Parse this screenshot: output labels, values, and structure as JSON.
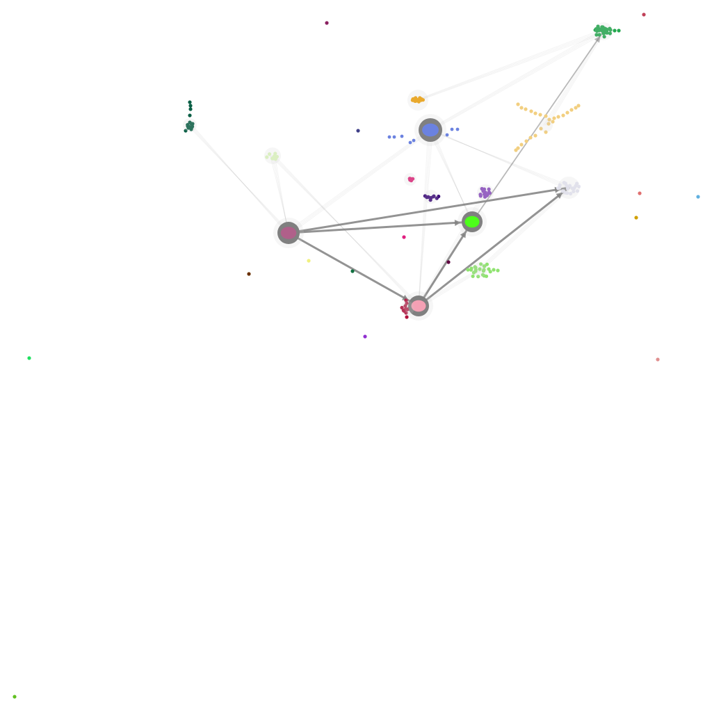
{
  "diagram": {
    "type": "clustered-network",
    "background": "#ffffff",
    "edge_color": "#808080",
    "hub_color": "#808080",
    "hubs": [
      {
        "id": "hub-mauve",
        "color": "#b0608a"
      },
      {
        "id": "hub-blue",
        "color": "#6b82e0"
      },
      {
        "id": "hub-green",
        "color": "#4dff1a"
      },
      {
        "id": "hub-pink",
        "color": "#f4a0b4"
      },
      {
        "id": "hub-lavender",
        "color": "#e6e6f2"
      },
      {
        "id": "hub-darkgreen",
        "color": "#24a84f"
      },
      {
        "id": "hub-orange",
        "color": "#f0a20a"
      },
      {
        "id": "hub-lightgreen",
        "color": "#dff7c0"
      },
      {
        "id": "hub-teal",
        "color": "#0a5f45"
      },
      {
        "id": "hub-mint",
        "color": "#8fe36f"
      },
      {
        "id": "hub-purple",
        "color": "#8a4cc0"
      },
      {
        "id": "hub-indigo",
        "color": "#3d0d7a"
      },
      {
        "id": "hub-magenta",
        "color": "#e0287a"
      },
      {
        "id": "hub-crimson",
        "color": "#b0103c"
      },
      {
        "id": "hub-sand",
        "color": "#f2cf80"
      }
    ],
    "edges": [
      {
        "from": "hub-mauve",
        "to": "hub-pink",
        "weight": "strong"
      },
      {
        "from": "hub-mauve",
        "to": "hub-green",
        "weight": "strong"
      },
      {
        "from": "hub-mauve",
        "to": "hub-lavender",
        "weight": "strong"
      },
      {
        "from": "hub-pink",
        "to": "hub-green",
        "weight": "strong"
      },
      {
        "from": "hub-pink",
        "to": "hub-lavender",
        "weight": "strong"
      },
      {
        "from": "hub-green",
        "to": "hub-darkgreen",
        "weight": "medium"
      },
      {
        "from": "hub-blue",
        "to": "hub-darkgreen",
        "weight": "light"
      },
      {
        "from": "hub-blue",
        "to": "hub-pink",
        "weight": "light"
      },
      {
        "from": "hub-blue",
        "to": "hub-green",
        "weight": "light"
      },
      {
        "from": "hub-blue",
        "to": "hub-lavender",
        "weight": "light"
      },
      {
        "from": "hub-blue",
        "to": "hub-mauve",
        "weight": "light"
      },
      {
        "from": "hub-orange",
        "to": "hub-darkgreen",
        "weight": "light"
      },
      {
        "from": "hub-teal",
        "to": "hub-mauve",
        "weight": "light"
      },
      {
        "from": "hub-lightgreen",
        "to": "hub-mauve",
        "weight": "light"
      },
      {
        "from": "hub-lightgreen",
        "to": "hub-pink",
        "weight": "light"
      },
      {
        "from": "hub-purple",
        "to": "hub-pink",
        "weight": "light"
      },
      {
        "from": "hub-mint",
        "to": "hub-pink",
        "weight": "light"
      },
      {
        "from": "hub-sand",
        "to": "hub-darkgreen",
        "weight": "light"
      },
      {
        "from": "hub-lavender",
        "to": "hub-mint",
        "weight": "light"
      }
    ],
    "isolated_nodes": [
      {
        "color": "#8a2060"
      },
      {
        "color": "#c04058"
      },
      {
        "color": "#404088"
      },
      {
        "color": "#e07070"
      },
      {
        "color": "#60b0e0"
      },
      {
        "color": "#d0a000"
      },
      {
        "color": "#e02080"
      },
      {
        "color": "#f0f080"
      },
      {
        "color": "#6a3000"
      },
      {
        "color": "#107040"
      },
      {
        "color": "#600040"
      },
      {
        "color": "#9030d0"
      },
      {
        "color": "#20e060"
      },
      {
        "color": "#e09090"
      },
      {
        "color": "#60c020"
      }
    ]
  }
}
